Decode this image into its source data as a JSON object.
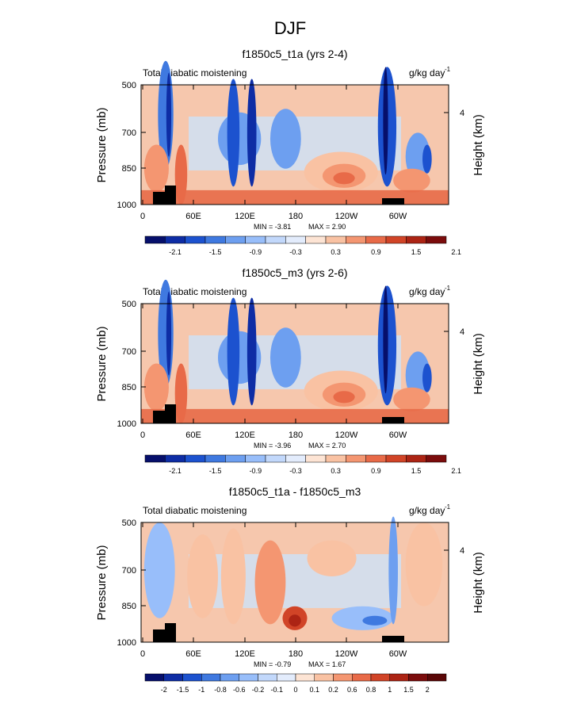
{
  "figure_title": "DJF",
  "colors": {
    "panel_fill_positive": "#f6c7ad",
    "panel_fill_negative": "#cfe0f5",
    "land": "#000000"
  },
  "chart_data": [
    {
      "type": "heatmap",
      "title": "f1850c5_t1a (yrs 2-4)",
      "left_label": "Total diabatic moistening",
      "units_label": "g/kg day",
      "units_exponent": "-1",
      "ylabel": "Pressure (mb)",
      "ylabel_right": "Height (km)",
      "yticks": [
        "500",
        "700",
        "850",
        "1000"
      ],
      "yticks_right": [
        "4"
      ],
      "xticks": [
        "0",
        "60E",
        "120E",
        "180",
        "120W",
        "60W"
      ],
      "min_label": "MIN =  -3.81",
      "max_label": "MAX =   2.90",
      "colorbar_ticks": [
        "-2.1",
        "-1.5",
        "-0.9",
        "-0.3",
        "0.3",
        "0.9",
        "1.5",
        "2.1"
      ],
      "colorbar_colors": [
        "#060f6b",
        "#0e2da5",
        "#1c52cf",
        "#3f79e0",
        "#6d9ff0",
        "#98befa",
        "#c2d8fb",
        "#e3ecfc",
        "#fde4d4",
        "#f9c2a3",
        "#f49671",
        "#e86a48",
        "#d14427",
        "#ac2414",
        "#7b0c0c"
      ]
    },
    {
      "type": "heatmap",
      "title": "f1850c5_m3 (yrs 2-6)",
      "left_label": "Total diabatic moistening",
      "units_label": "g/kg day",
      "units_exponent": "-1",
      "ylabel": "Pressure (mb)",
      "ylabel_right": "Height (km)",
      "yticks": [
        "500",
        "700",
        "850",
        "1000"
      ],
      "yticks_right": [
        "4"
      ],
      "xticks": [
        "0",
        "60E",
        "120E",
        "180",
        "120W",
        "60W"
      ],
      "min_label": "MIN =  -3.96",
      "max_label": "MAX =   2.70",
      "colorbar_ticks": [
        "-2.1",
        "-1.5",
        "-0.9",
        "-0.3",
        "0.3",
        "0.9",
        "1.5",
        "2.1"
      ],
      "colorbar_colors": [
        "#060f6b",
        "#0e2da5",
        "#1c52cf",
        "#3f79e0",
        "#6d9ff0",
        "#98befa",
        "#c2d8fb",
        "#e3ecfc",
        "#fde4d4",
        "#f9c2a3",
        "#f49671",
        "#e86a48",
        "#d14427",
        "#ac2414",
        "#7b0c0c"
      ]
    },
    {
      "type": "heatmap",
      "title": "f1850c5_t1a - f1850c5_m3",
      "left_label": "Total diabatic moistening",
      "units_label": "g/kg day",
      "units_exponent": "-1",
      "ylabel": "Pressure (mb)",
      "ylabel_right": "Height (km)",
      "yticks": [
        "500",
        "700",
        "850",
        "1000"
      ],
      "yticks_right": [
        "4"
      ],
      "xticks": [
        "0",
        "60E",
        "120E",
        "180",
        "120W",
        "60W"
      ],
      "min_label": "MIN =  -0.79",
      "max_label": "MAX =   1.67",
      "colorbar_ticks": [
        "-2",
        "-1.5",
        "-1",
        "-0.8",
        "-0.6",
        "-0.2",
        "-0.1",
        "0",
        "0.1",
        "0.2",
        "0.6",
        "0.8",
        "1",
        "1.5",
        "2"
      ],
      "colorbar_colors": [
        "#060f6b",
        "#0e2da5",
        "#1c52cf",
        "#3f79e0",
        "#6d9ff0",
        "#98befa",
        "#c2d8fb",
        "#e3ecfc",
        "#fde4d4",
        "#f9c2a3",
        "#f49671",
        "#e86a48",
        "#d14427",
        "#ac2414",
        "#7b0c0c",
        "#5a0707"
      ]
    }
  ]
}
